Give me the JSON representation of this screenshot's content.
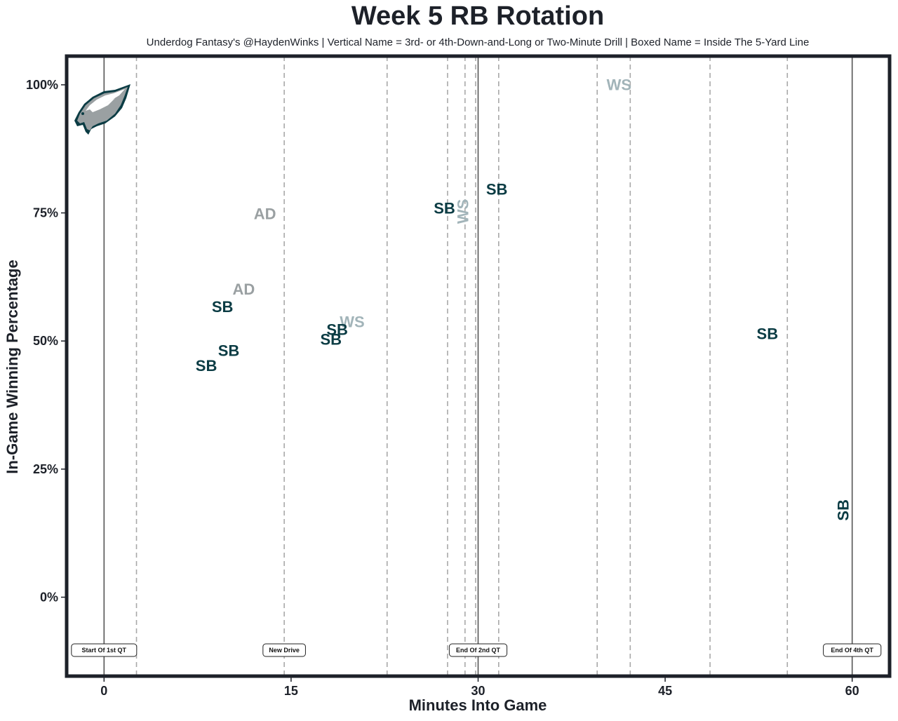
{
  "chart_data": {
    "type": "scatter",
    "title": "Week 5 RB Rotation",
    "subtitle": "Underdog Fantasy's @HaydenWinks | Vertical Name = 3rd- or 4th-Down-and-Long or Two-Minute Drill | Boxed Name = Inside The 5-Yard Line",
    "xlabel": "Minutes Into Game",
    "ylabel": "In-Game Winning Percentage",
    "xlim": [
      -3,
      63
    ],
    "ylim": [
      -15.4,
      105.6
    ],
    "x_ticks": [
      0,
      15,
      30,
      45,
      60
    ],
    "x_tick_labels": [
      "0",
      "15",
      "30",
      "45",
      "60"
    ],
    "y_ticks": [
      0,
      25,
      50,
      75,
      100
    ],
    "y_tick_labels": [
      "0%",
      "25%",
      "50%",
      "75%",
      "100%"
    ],
    "grid": false,
    "team_logo": "philadelphia-eagles-logo",
    "colors": {
      "frame": "#1d2129",
      "SB": "#0b3c44",
      "AD": "#9aa0a2",
      "WS": "#a2b4b9",
      "dashed_line": "#a8a8a8",
      "solid_line": "#555555"
    },
    "quarter_lines": [
      0,
      30,
      60
    ],
    "drive_lines": [
      2.6,
      14.45,
      22.7,
      27.55,
      28.95,
      29.8,
      31.65,
      39.55,
      42.2,
      48.6,
      54.8
    ],
    "annotations": [
      {
        "x": 0,
        "label": "Start Of 1st QT"
      },
      {
        "x": 14.45,
        "label": "New Drive"
      },
      {
        "x": 30,
        "label": "End Of 2nd QT"
      },
      {
        "x": 60,
        "label": "End Of 4th QT"
      }
    ],
    "points": [
      {
        "x": 12.9,
        "y": 74.8,
        "player": "AD",
        "vertical": false
      },
      {
        "x": 11.2,
        "y": 60.1,
        "player": "AD",
        "vertical": false
      },
      {
        "x": 9.5,
        "y": 56.7,
        "player": "SB",
        "vertical": false
      },
      {
        "x": 10.0,
        "y": 48.1,
        "player": "SB",
        "vertical": false
      },
      {
        "x": 8.2,
        "y": 45.2,
        "player": "SB",
        "vertical": false
      },
      {
        "x": 19.9,
        "y": 53.7,
        "player": "WS",
        "vertical": false
      },
      {
        "x": 18.7,
        "y": 52.2,
        "player": "SB",
        "vertical": false
      },
      {
        "x": 18.2,
        "y": 50.3,
        "player": "SB",
        "vertical": false
      },
      {
        "x": 27.3,
        "y": 75.9,
        "player": "SB",
        "vertical": false
      },
      {
        "x": 28.8,
        "y": 75.3,
        "player": "WS",
        "vertical": true
      },
      {
        "x": 31.5,
        "y": 79.6,
        "player": "SB",
        "vertical": false
      },
      {
        "x": 41.3,
        "y": 100.0,
        "player": "WS",
        "vertical": false
      },
      {
        "x": 53.2,
        "y": 51.4,
        "player": "SB",
        "vertical": false
      },
      {
        "x": 59.3,
        "y": 17.0,
        "player": "SB",
        "vertical": true
      }
    ]
  }
}
